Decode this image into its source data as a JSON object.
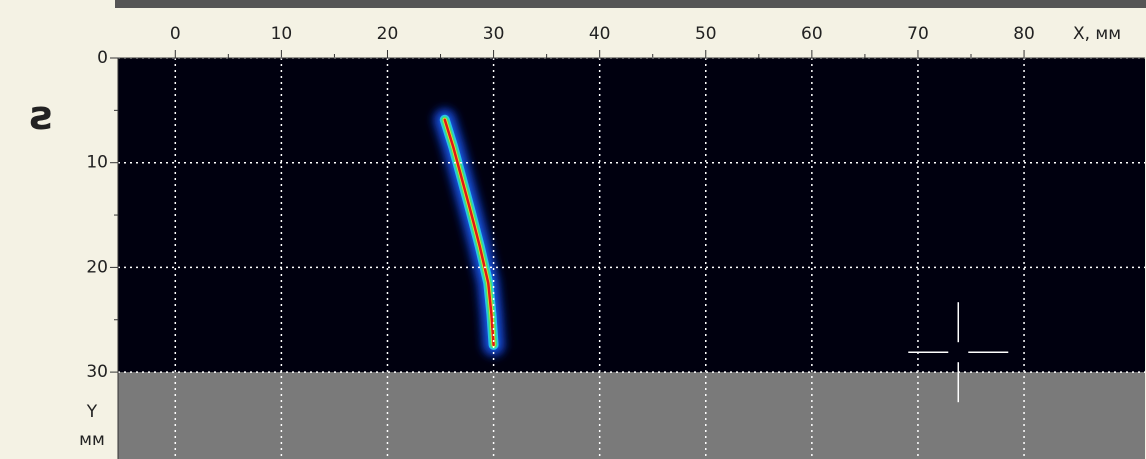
{
  "chart_data": {
    "type": "scan",
    "symbol": "ƨ",
    "xlabel": "X, мм",
    "ylabel": [
      "Y",
      "мм"
    ],
    "xlim": [
      -5.4,
      91.4
    ],
    "ylim": [
      0,
      38.3
    ],
    "xticks": [
      0,
      10,
      20,
      30,
      40,
      50,
      60,
      70,
      80
    ],
    "yticks": [
      0,
      10,
      20,
      30
    ],
    "grid": true,
    "scan_area": {
      "ylim": [
        0,
        30
      ],
      "color": "#00000f"
    },
    "background": "#7a7a7a",
    "indication": {
      "x": [
        25.4,
        26.2,
        27.0,
        27.8,
        28.7,
        29.5,
        29.8,
        30.0
      ],
      "y": [
        5.9,
        8.5,
        11.5,
        14.5,
        18.0,
        21.5,
        24.5,
        27.4
      ]
    },
    "cursor": {
      "x": 73.8,
      "y": 28.1
    }
  }
}
